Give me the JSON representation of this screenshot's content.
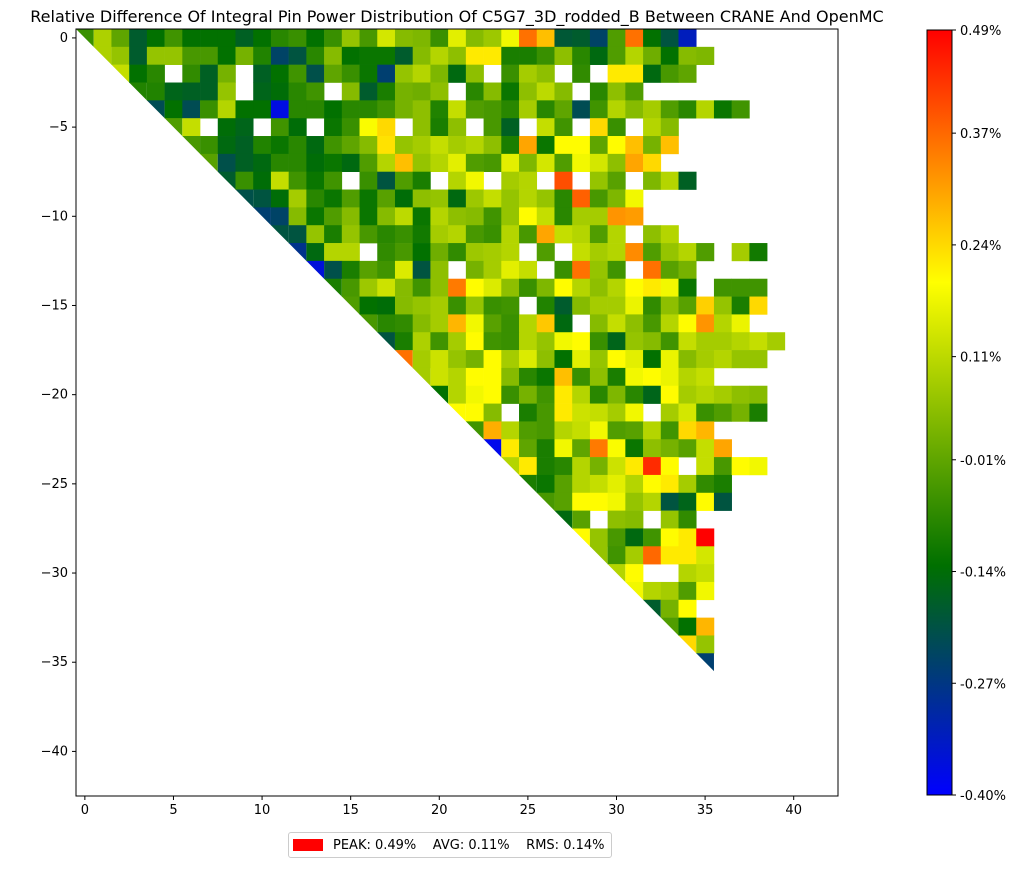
{
  "chart_data": {
    "type": "heatmap",
    "title": "Relative Difference Of Integral Pin Power Distribution Of C5G7_3D_rodded_B Between CRANE And OpenMC",
    "grid_size": 43,
    "x_ticks": [
      "0",
      "5",
      "10",
      "15",
      "20",
      "25",
      "30",
      "35",
      "40"
    ],
    "y_ticks": [
      "0",
      "−5",
      "−10",
      "−15",
      "−20",
      "−25",
      "−30",
      "−35",
      "−40"
    ],
    "xlim": [
      -0.5,
      42.5
    ],
    "ylim": [
      -42.5,
      0.5
    ],
    "colorbar": {
      "vmin": -0.4,
      "vmax": 0.49,
      "tick_values": [
        0.49,
        0.37,
        0.24,
        0.11,
        -0.01,
        -0.14,
        -0.27,
        -0.4
      ],
      "tick_labels": [
        "0.49%",
        "0.37%",
        "0.24%",
        "0.11%",
        "-0.01%",
        "-0.14%",
        "-0.27%",
        "-0.40%"
      ],
      "colors": [
        "#0000ff",
        "#007000",
        "#ffff00",
        "#ff0000"
      ],
      "color_stops": [
        0.0,
        0.3,
        0.67,
        1.0
      ]
    },
    "rows_note": "Upper-triangular pin map; row i lists values (in %) for columns i..42; null = empty (no pin) cell",
    "rows": [
      [
        -0.06,
        0.09,
        -0.01,
        -0.18,
        -0.13,
        -0.05,
        -0.13,
        -0.13,
        -0.13,
        -0.17,
        -0.13,
        -0.08,
        -0.06,
        -0.13,
        -0.06,
        0.06,
        -0.04,
        0.14,
        0.04,
        0.03,
        -0.06,
        0.16,
        0.04,
        0.07,
        0.18,
        0.36,
        0.27,
        -0.19,
        -0.18,
        -0.24,
        -0.03,
        0.36,
        -0.13,
        -0.2,
        -0.33
      ],
      [
        0.09,
        0.06,
        -0.18,
        0.06,
        0.06,
        -0.04,
        -0.04,
        -0.13,
        0.02,
        -0.09,
        -0.24,
        -0.2,
        -0.08,
        0.04,
        -0.13,
        -0.12,
        -0.12,
        -0.18,
        0.04,
        0.1,
        0.05,
        0.22,
        0.22,
        -0.1,
        -0.1,
        -0.06,
        0.05,
        -0.08,
        -0.15,
        -0.03,
        0.1,
        0.01,
        -0.13,
        0.04,
        0.03
      ],
      [
        0.12,
        -0.13,
        -0.08,
        null,
        -0.07,
        -0.17,
        0.02,
        null,
        -0.17,
        -0.13,
        -0.05,
        -0.21,
        -0.01,
        -0.06,
        -0.12,
        -0.25,
        0.06,
        0.1,
        0.03,
        -0.15,
        0.05,
        null,
        -0.06,
        0.08,
        0.05,
        null,
        -0.07,
        null,
        0.22,
        0.22,
        -0.15,
        -0.04,
        -0.01
      ],
      [
        -0.09,
        -0.09,
        -0.16,
        -0.17,
        -0.17,
        0.06,
        null,
        -0.16,
        -0.14,
        -0.08,
        -0.05,
        null,
        0.04,
        -0.18,
        -0.1,
        0.02,
        0.01,
        0.05,
        null,
        -0.08,
        0.04,
        -0.12,
        0.05,
        0.11,
        0.04,
        null,
        -0.08,
        0.05,
        -0.03
      ],
      [
        -0.22,
        -0.13,
        -0.22,
        -0.06,
        0.1,
        -0.13,
        -0.13,
        -0.37,
        -0.08,
        -0.08,
        -0.13,
        -0.08,
        -0.08,
        -0.05,
        0.02,
        0.05,
        -0.09,
        0.12,
        -0.03,
        -0.04,
        -0.08,
        0.08,
        -0.08,
        -0.01,
        -0.22,
        -0.05,
        0.1,
        0.04,
        0.08,
        -0.03,
        -0.08,
        0.1,
        -0.12,
        -0.05
      ],
      [
        -0.03,
        0.12,
        null,
        -0.14,
        -0.16,
        null,
        -0.05,
        -0.14,
        null,
        -0.12,
        -0.06,
        0.19,
        0.24,
        null,
        0.05,
        -0.1,
        0.05,
        null,
        -0.04,
        -0.17,
        null,
        0.12,
        -0.05,
        null,
        0.24,
        -0.06,
        null,
        0.1,
        0.04
      ],
      [
        -0.04,
        -0.06,
        -0.15,
        -0.17,
        -0.09,
        -0.12,
        -0.08,
        -0.15,
        -0.05,
        -0.01,
        0.04,
        0.23,
        0.06,
        0.08,
        0.12,
        0.08,
        0.1,
        0.05,
        -0.1,
        0.3,
        -0.12,
        0.2,
        0.2,
        -0.01,
        0.2,
        0.27,
        0.02,
        0.27
      ],
      [
        -0.02,
        -0.21,
        -0.17,
        -0.15,
        -0.08,
        -0.08,
        -0.14,
        -0.12,
        -0.15,
        -0.03,
        0.1,
        0.27,
        0.06,
        0.1,
        0.16,
        -0.03,
        -0.04,
        0.16,
        0.03,
        0.14,
        -0.03,
        0.18,
        0.14,
        0.05,
        0.3,
        0.24
      ],
      [
        -0.18,
        -0.06,
        -0.14,
        0.12,
        -0.05,
        -0.12,
        -0.05,
        null,
        -0.06,
        -0.2,
        -0.03,
        -0.1,
        null,
        0.1,
        0.18,
        null,
        0.08,
        0.1,
        null,
        0.4,
        null,
        0.06,
        -0.02,
        null,
        0.03,
        0.1,
        -0.17
      ],
      [
        -0.21,
        -0.2,
        -0.14,
        0.08,
        -0.08,
        -0.12,
        -0.03,
        -0.12,
        -0.02,
        -0.14,
        0.05,
        0.06,
        -0.15,
        0.07,
        0.12,
        0.06,
        0.1,
        0.06,
        -0.08,
        0.38,
        -0.04,
        0.03,
        0.18
      ],
      [
        -0.25,
        -0.24,
        0.04,
        -0.12,
        -0.03,
        0.04,
        -0.12,
        0.04,
        0.11,
        -0.12,
        0.1,
        0.05,
        0.04,
        -0.05,
        0.06,
        0.2,
        0.12,
        -0.08,
        0.08,
        0.08,
        0.32,
        0.31
      ],
      [
        -0.2,
        -0.2,
        0.06,
        -0.1,
        0.06,
        -0.04,
        -0.08,
        -0.06,
        -0.11,
        0.08,
        0.1,
        -0.04,
        -0.06,
        0.1,
        -0.04,
        0.3,
        0.12,
        0.1,
        -0.03,
        0.1,
        null,
        0.05,
        0.1
      ],
      [
        -0.28,
        -0.15,
        0.1,
        0.1,
        null,
        -0.07,
        -0.04,
        -0.13,
        0.01,
        -0.07,
        0.07,
        0.08,
        0.1,
        null,
        -0.03,
        null,
        0.12,
        0.08,
        0.1,
        0.33,
        -0.03,
        0.06,
        0.1,
        -0.03,
        null,
        0.08,
        -0.11
      ],
      [
        -0.36,
        -0.21,
        -0.1,
        -0.02,
        -0.05,
        0.15,
        -0.2,
        0.05,
        null,
        0.02,
        0.08,
        0.16,
        0.12,
        null,
        -0.06,
        0.36,
        0.06,
        -0.05,
        null,
        0.36,
        -0.02,
        0.02
      ],
      [
        -0.1,
        -0.04,
        0.07,
        0.13,
        0.04,
        -0.05,
        0.05,
        0.35,
        0.2,
        0.15,
        0.05,
        -0.06,
        0.03,
        0.2,
        0.1,
        0.05,
        0.1,
        0.2,
        0.22,
        0.18,
        -0.12,
        null,
        -0.05,
        -0.05,
        -0.05
      ],
      [
        -0.03,
        -0.13,
        -0.14,
        0.04,
        0.06,
        0.08,
        -0.06,
        0.06,
        -0.06,
        -0.05,
        null,
        -0.09,
        -0.18,
        0.04,
        0.08,
        0.08,
        0.17,
        -0.07,
        0.05,
        -0.02,
        0.25,
        0.06,
        -0.1,
        0.24
      ],
      [
        -0.04,
        -0.08,
        -0.07,
        0.04,
        0.08,
        0.28,
        0.18,
        -0.02,
        -0.06,
        0.1,
        0.26,
        -0.15,
        null,
        0.04,
        0.12,
        0.05,
        -0.04,
        0.1,
        0.2,
        0.32,
        0.1,
        0.17
      ],
      [
        -0.2,
        -0.1,
        0.09,
        -0.05,
        0.08,
        0.2,
        -0.05,
        -0.06,
        0.1,
        0.06,
        0.18,
        0.2,
        -0.06,
        -0.16,
        0.06,
        0.04,
        -0.05,
        0.12,
        0.08,
        0.08,
        0.1,
        0.12,
        0.08
      ],
      [
        0.36,
        0.08,
        0.13,
        0.06,
        0.02,
        0.2,
        0.08,
        0.15,
        0.05,
        -0.13,
        0.16,
        0.06,
        0.2,
        0.16,
        -0.13,
        0.17,
        0.04,
        0.08,
        0.1,
        0.06,
        0.06
      ],
      [
        0.08,
        0.13,
        0.1,
        0.2,
        0.2,
        0.04,
        -0.08,
        -0.12,
        0.27,
        -0.06,
        0.05,
        -0.1,
        0.18,
        0.2,
        0.17,
        0.1,
        0.12
      ],
      [
        -0.13,
        0.1,
        0.18,
        0.2,
        -0.06,
        0.02,
        -0.05,
        0.22,
        0.1,
        -0.08,
        0.03,
        -0.08,
        -0.16,
        0.2,
        0.08,
        0.1,
        0.08,
        0.05,
        0.04
      ],
      [
        0.2,
        0.2,
        0.04,
        null,
        -0.1,
        -0.04,
        0.22,
        0.13,
        0.12,
        0.08,
        0.18,
        null,
        0.08,
        0.14,
        -0.06,
        -0.03,
        0.02,
        -0.1
      ],
      [
        -0.05,
        0.29,
        0.1,
        -0.03,
        -0.04,
        0.1,
        0.12,
        0.18,
        -0.03,
        -0.02,
        0.1,
        -0.05,
        0.24,
        0.28
      ],
      [
        -0.38,
        0.22,
        -0.01,
        -0.1,
        0.18,
        -0.01,
        0.35,
        0.19,
        -0.12,
        0.05,
        0.02,
        -0.02,
        0.12,
        0.3
      ],
      [
        0.1,
        0.22,
        -0.1,
        -0.08,
        0.1,
        0.02,
        0.13,
        0.22,
        0.44,
        0.2,
        null,
        0.12,
        -0.04,
        0.2,
        0.18
      ],
      [
        -0.1,
        -0.12,
        -0.02,
        0.1,
        0.12,
        0.16,
        0.1,
        0.2,
        0.22,
        0.08,
        -0.07,
        -0.1
      ],
      [
        -0.04,
        -0.02,
        0.2,
        0.2,
        0.18,
        0.06,
        0.1,
        -0.2,
        -0.16,
        0.2,
        -0.2
      ],
      [
        -0.15,
        -0.02,
        null,
        0.05,
        0.04,
        null,
        0.06,
        -0.07
      ],
      [
        0.2,
        0.06,
        -0.04,
        -0.15,
        -0.05,
        0.2,
        0.22,
        0.49
      ],
      [
        0.06,
        -0.05,
        0.08,
        0.37,
        0.22,
        0.22,
        0.14
      ],
      [
        0.1,
        0.2,
        null,
        null,
        0.1,
        0.12
      ],
      [
        0.18,
        0.1,
        0.08,
        -0.03,
        0.18
      ],
      [
        -0.18,
        0.02,
        0.2
      ],
      [
        -0.03,
        -0.13,
        0.28
      ],
      [
        0.24,
        0.06
      ],
      [
        -0.25
      ]
    ],
    "summary": "PEAK: 0.49%    AVG: 0.11%    RMS: 0.14%"
  }
}
